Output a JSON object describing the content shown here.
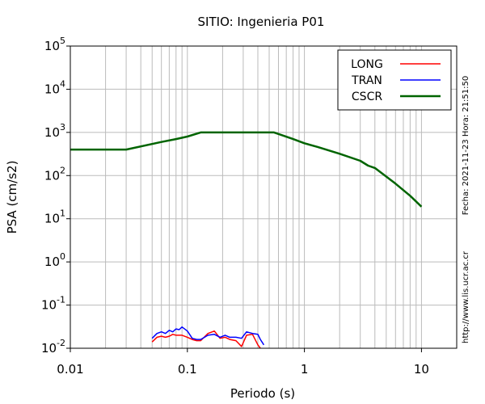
{
  "chart_data": {
    "type": "line",
    "title": "SITIO: Ingenieria P01",
    "xlabel": "Periodo (s)",
    "ylabel": "PSA (cm/s2)",
    "x_scale": "log",
    "y_scale": "log",
    "xlim": [
      0.01,
      20
    ],
    "ylim": [
      0.01,
      100000
    ],
    "grid": true,
    "legend_position": "top-right",
    "x_ticks": [
      {
        "value": 0.01,
        "label": "0.01"
      },
      {
        "value": 0.1,
        "label": "0.1"
      },
      {
        "value": 1,
        "label": "1"
      },
      {
        "value": 10,
        "label": "10"
      }
    ],
    "y_ticks": [
      {
        "value": 0.01,
        "base": "10",
        "exp": "-2"
      },
      {
        "value": 0.1,
        "base": "10",
        "exp": "-1"
      },
      {
        "value": 1,
        "base": "10",
        "exp": "0"
      },
      {
        "value": 10,
        "base": "10",
        "exp": "1"
      },
      {
        "value": 100,
        "base": "10",
        "exp": "2"
      },
      {
        "value": 1000,
        "base": "10",
        "exp": "3"
      },
      {
        "value": 10000,
        "base": "10",
        "exp": "4"
      },
      {
        "value": 100000,
        "base": "10",
        "exp": "5"
      }
    ],
    "side_text": {
      "date": "Fecha: 2021-11-23 Hora: 21:51:50",
      "url": "http://www.lis.ucr.ac.cr"
    },
    "series": [
      {
        "name": "LONG",
        "color": "#ff0000",
        "x": [
          0.05,
          0.055,
          0.06,
          0.065,
          0.07,
          0.075,
          0.08,
          0.09,
          0.1,
          0.11,
          0.12,
          0.13,
          0.15,
          0.17,
          0.19,
          0.21,
          0.23,
          0.26,
          0.29,
          0.32,
          0.36,
          0.4,
          0.42
        ],
        "y": [
          0.014,
          0.018,
          0.019,
          0.018,
          0.019,
          0.021,
          0.02,
          0.02,
          0.018,
          0.016,
          0.015,
          0.015,
          0.022,
          0.025,
          0.017,
          0.018,
          0.016,
          0.015,
          0.011,
          0.02,
          0.021,
          0.012,
          0.01
        ]
      },
      {
        "name": "TRAN",
        "color": "#0000ff",
        "x": [
          0.05,
          0.055,
          0.06,
          0.065,
          0.07,
          0.075,
          0.08,
          0.085,
          0.09,
          0.1,
          0.11,
          0.12,
          0.13,
          0.15,
          0.17,
          0.19,
          0.21,
          0.23,
          0.26,
          0.29,
          0.32,
          0.36,
          0.4,
          0.42,
          0.45
        ],
        "y": [
          0.017,
          0.022,
          0.024,
          0.022,
          0.026,
          0.024,
          0.028,
          0.027,
          0.031,
          0.025,
          0.017,
          0.016,
          0.016,
          0.02,
          0.021,
          0.018,
          0.02,
          0.018,
          0.018,
          0.017,
          0.024,
          0.022,
          0.021,
          0.016,
          0.012
        ]
      },
      {
        "name": "CSCR",
        "color": "#006400",
        "x": [
          0.01,
          0.03,
          0.06,
          0.08,
          0.1,
          0.13,
          0.2,
          0.3,
          0.55,
          0.8,
          1,
          1.3,
          2,
          3,
          3.5,
          4,
          5,
          6,
          8,
          10
        ],
        "y": [
          400,
          400,
          600,
          700,
          800,
          1000,
          1000,
          1000,
          1000,
          700,
          560,
          460,
          320,
          220,
          170,
          150,
          95,
          65,
          34,
          19
        ]
      }
    ]
  }
}
